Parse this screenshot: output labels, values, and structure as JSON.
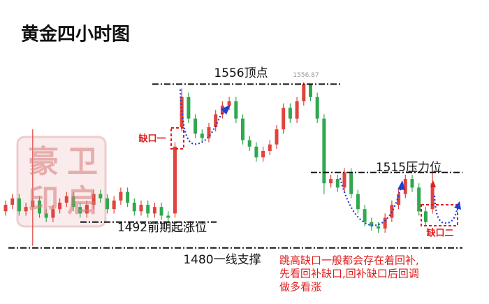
{
  "chart_data": {
    "type": "candlestick",
    "title": "黄金四小时图",
    "up_color": "#e0443c",
    "down_color": "#2fa84f",
    "ylim": [
      1454,
      1595
    ],
    "open": [
      1497,
      1500,
      1503,
      1497,
      1499,
      1502,
      1496,
      1494,
      1498,
      1501,
      1504,
      1499,
      1496,
      1500,
      1505,
      1503,
      1498,
      1502,
      1506,
      1501,
      1497,
      1500,
      1496,
      1499,
      1495,
      1496,
      1536,
      1550,
      1540,
      1533,
      1531,
      1536,
      1542,
      1546,
      1548,
      1540,
      1530,
      1527,
      1522,
      1525,
      1528,
      1535,
      1545,
      1540,
      1548,
      1556,
      1550,
      1540,
      1510,
      1512,
      1508,
      1515,
      1505,
      1498,
      1492,
      1490,
      1489,
      1494,
      1500,
      1505,
      1512,
      1508,
      1497,
      1498
    ],
    "high": [
      1502,
      1505,
      1505,
      1501,
      1535,
      1504,
      1498,
      1500,
      1503,
      1506,
      1506,
      1501,
      1502,
      1507,
      1507,
      1505,
      1504,
      1508,
      1508,
      1503,
      1502,
      1502,
      1501,
      1501,
      1497,
      1529,
      1554,
      1552,
      1542,
      1535,
      1538,
      1544,
      1548,
      1550,
      1550,
      1542,
      1532,
      1529,
      1527,
      1530,
      1537,
      1547,
      1547,
      1550,
      1556.87,
      1555,
      1552,
      1542,
      1514,
      1514,
      1517,
      1517,
      1507,
      1500,
      1494,
      1492,
      1496,
      1502,
      1507,
      1514,
      1514,
      1510,
      1499,
      1515
    ],
    "low": [
      1495,
      1498,
      1495,
      1495,
      1481,
      1494,
      1492,
      1492,
      1496,
      1499,
      1497,
      1494,
      1494,
      1498,
      1501,
      1496,
      1496,
      1500,
      1499,
      1495,
      1495,
      1494,
      1494,
      1493,
      1490,
      1494,
      1534,
      1538,
      1531,
      1529,
      1529,
      1534,
      1540,
      1544,
      1538,
      1528,
      1525,
      1520,
      1520,
      1523,
      1526,
      1533,
      1538,
      1538,
      1546,
      1548,
      1538,
      1505,
      1508,
      1506,
      1506,
      1503,
      1496,
      1490,
      1488,
      1487,
      1487,
      1492,
      1498,
      1503,
      1506,
      1495,
      1490,
      1496
    ],
    "close": [
      1500,
      1503,
      1497,
      1499,
      1502,
      1496,
      1494,
      1498,
      1501,
      1504,
      1499,
      1496,
      1500,
      1505,
      1503,
      1498,
      1502,
      1506,
      1501,
      1497,
      1500,
      1496,
      1499,
      1495,
      1494,
      1527,
      1550,
      1540,
      1533,
      1531,
      1536,
      1542,
      1546,
      1548,
      1540,
      1530,
      1527,
      1522,
      1525,
      1528,
      1535,
      1545,
      1540,
      1548,
      1556,
      1550,
      1540,
      1510,
      1512,
      1508,
      1515,
      1505,
      1498,
      1492,
      1490,
      1489,
      1494,
      1500,
      1505,
      1512,
      1508,
      1497,
      1492,
      1510
    ],
    "high_label": 1556.87,
    "levels": [
      {
        "value": 1556,
        "label": "1556顶点"
      },
      {
        "value": 1515,
        "label": "1515压力位"
      },
      {
        "value": 1492,
        "label": "1492前期起涨位"
      },
      {
        "value": 1480,
        "label": "1480一线支撑"
      }
    ],
    "gaps": [
      "缺口一",
      "缺口二"
    ],
    "note": [
      "跳高缺口一般都会存在着回补,",
      "先看回补缺口,回补缺口后回调",
      "做多看涨"
    ],
    "watermark": [
      "豪",
      "卫",
      "印",
      "启"
    ]
  }
}
